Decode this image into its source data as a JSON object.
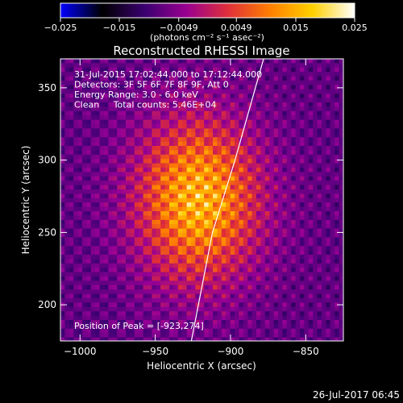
{
  "chart_data": {
    "type": "heatmap",
    "title": "Reconstructed RHESSI Image",
    "xlabel": "Heliocentric X (arcsec)",
    "ylabel": "Heliocentric Y (arcsec)",
    "xlim": [
      -1013,
      -825
    ],
    "ylim": [
      175,
      370
    ],
    "x_ticks": [
      -1000,
      -950,
      -900,
      -850
    ],
    "y_ticks": [
      200,
      250,
      300,
      350
    ],
    "x_tick_labels": [
      "−1000",
      "−950",
      "−900",
      "−850"
    ],
    "y_tick_labels": [
      "200",
      "250",
      "300",
      "350"
    ],
    "colorbar": {
      "range": [
        -0.025,
        0.025
      ],
      "ticks": [
        -0.025,
        -0.015,
        -0.0049,
        0.0049,
        0.015,
        0.025
      ],
      "tick_labels": [
        "−0.025",
        "−0.015",
        "−0.0049",
        "0.0049",
        "0.015",
        "0.025"
      ],
      "units": "(photons cm⁻² s⁻¹ asec⁻²)",
      "colormap": [
        "#0000ff",
        "#000000",
        "#3a0070",
        "#9a0090",
        "#e0303a",
        "#ff8000",
        "#ffd000",
        "#ffffff"
      ]
    },
    "annotations": [
      "31-Jul-2015 17:02:44.000 to 17:12:44.000",
      "Detectors: 3F 5F 6F 7F 8F 9F, Att 0",
      "Energy Range: 3.0 - 6.0 keV",
      "Clean     Total counts: 5.46E+04"
    ],
    "peak_label": "Position of Peak = [-923,274]",
    "peak": [
      -923,
      274
    ],
    "limb_curve": [
      [
        -926,
        175
      ],
      [
        -912,
        250
      ],
      [
        -897,
        300
      ],
      [
        -878,
        370
      ]
    ]
  },
  "footer": {
    "timestamp": "26-Jul-2017 06:45"
  }
}
